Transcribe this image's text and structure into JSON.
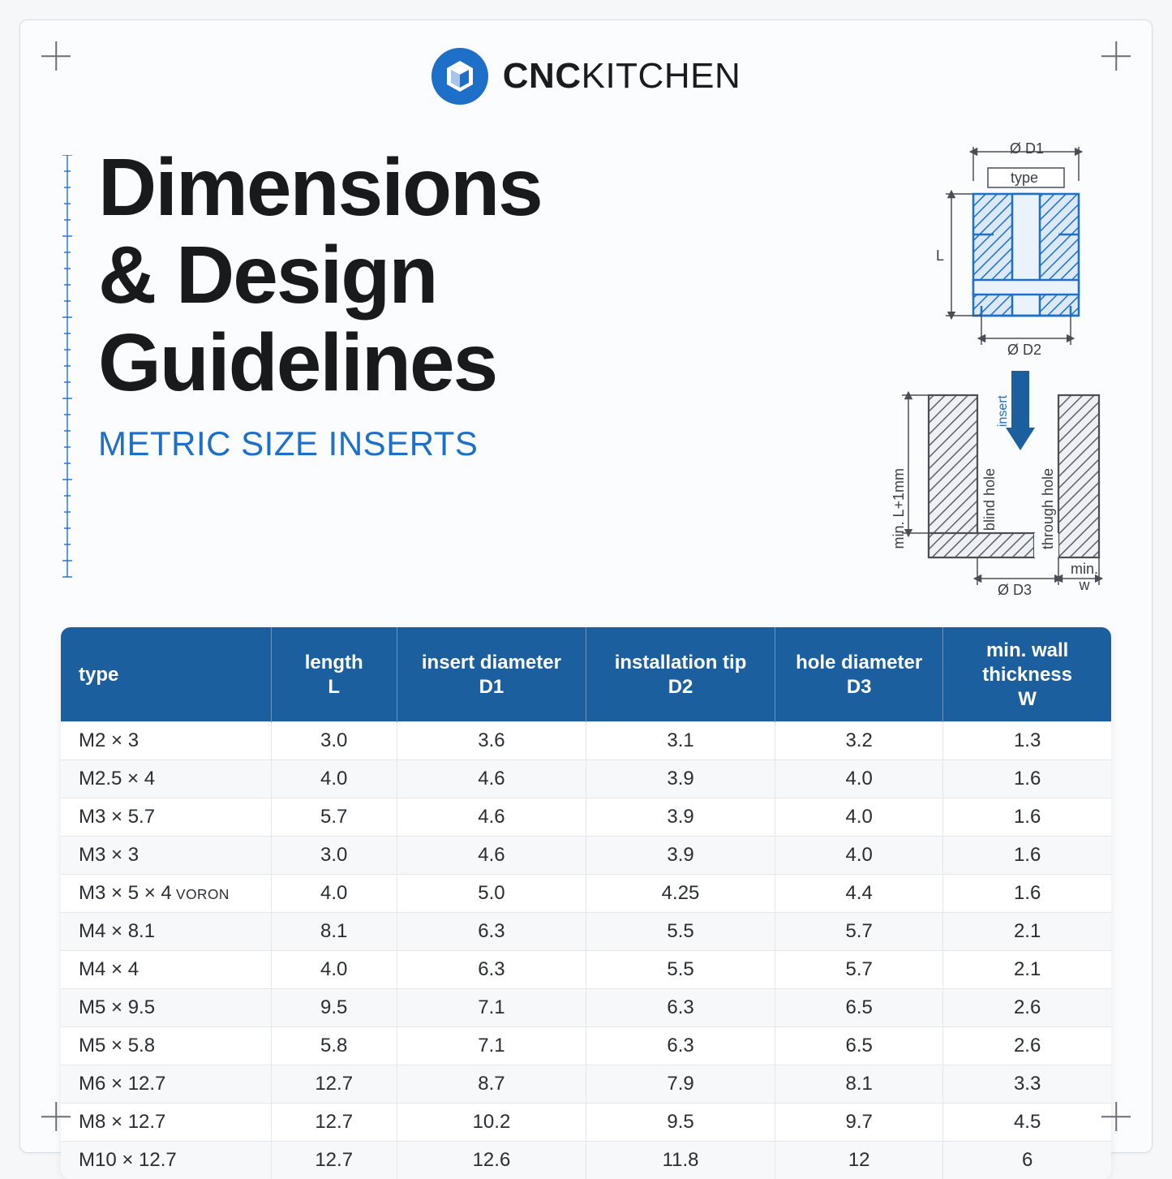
{
  "brand": {
    "cnc": "CNC",
    "kitchen": "KITCHEN"
  },
  "title": {
    "l1": "Dimensions",
    "l2": "& Design",
    "l3": "Guidelines"
  },
  "subtitle": "METRIC SIZE INSERTS",
  "diagram": {
    "d1": "Ø D1",
    "type": "type",
    "L": "L",
    "d2": "Ø D2",
    "insert": "insert",
    "minL": "min. L+1mm",
    "blind": "blind hole",
    "through": "through hole",
    "d3": "Ø D3",
    "minw": "min.\nw"
  },
  "table": {
    "headers": {
      "type": "type",
      "L_top": "length",
      "L_sub": "L",
      "D1_top": "insert diameter",
      "D1_sub": "D1",
      "D2_top": "installation tip",
      "D2_sub": "D2",
      "D3_top": "hole diameter",
      "D3_sub": "D3",
      "W_top": "min. wall thickness",
      "W_sub": "W"
    },
    "rows": [
      {
        "type": "M2 × 3",
        "L": "3.0",
        "D1": "3.6",
        "D2": "3.1",
        "D3": "3.2",
        "W": "1.3"
      },
      {
        "type": "M2.5 × 4",
        "L": "4.0",
        "D1": "4.6",
        "D2": "3.9",
        "D3": "4.0",
        "W": "1.6"
      },
      {
        "type": "M3 × 5.7",
        "L": "5.7",
        "D1": "4.6",
        "D2": "3.9",
        "D3": "4.0",
        "W": "1.6"
      },
      {
        "type": "M3 × 3",
        "L": "3.0",
        "D1": "4.6",
        "D2": "3.9",
        "D3": "4.0",
        "W": "1.6"
      },
      {
        "type": "M3 × 5 × 4",
        "voron": "VORON",
        "L": "4.0",
        "D1": "5.0",
        "D2": "4.25",
        "D3": "4.4",
        "W": "1.6"
      },
      {
        "type": "M4 × 8.1",
        "L": "8.1",
        "D1": "6.3",
        "D2": "5.5",
        "D3": "5.7",
        "W": "2.1"
      },
      {
        "type": "M4 × 4",
        "L": "4.0",
        "D1": "6.3",
        "D2": "5.5",
        "D3": "5.7",
        "W": "2.1"
      },
      {
        "type": "M5 × 9.5",
        "L": "9.5",
        "D1": "7.1",
        "D2": "6.3",
        "D3": "6.5",
        "W": "2.6"
      },
      {
        "type": "M5 × 5.8",
        "L": "5.8",
        "D1": "7.1",
        "D2": "6.3",
        "D3": "6.5",
        "W": "2.6"
      },
      {
        "type": "M6 × 12.7",
        "L": "12.7",
        "D1": "8.7",
        "D2": "7.9",
        "D3": "8.1",
        "W": "3.3"
      },
      {
        "type": "M8 × 12.7",
        "L": "12.7",
        "D1": "10.2",
        "D2": "9.5",
        "D3": "9.7",
        "W": "4.5"
      },
      {
        "type": "M10 × 12.7",
        "L": "12.7",
        "D1": "12.6",
        "D2": "11.8",
        "D3": "12",
        "W": "6"
      }
    ],
    "col_widths_pct": [
      20,
      12,
      18,
      18,
      16,
      20
    ],
    "header_bg": "#1b5f9e",
    "row_alt_bg": "#f6f8fa",
    "border_color": "#e3e7ec"
  },
  "colors": {
    "accent": "#1e6fc7",
    "bg": "#fbfcfd",
    "text": "#181a1c"
  }
}
